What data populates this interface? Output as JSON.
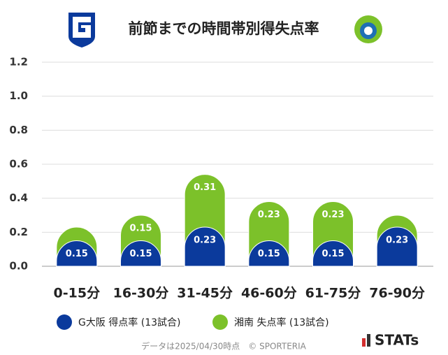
{
  "chart_data": {
    "type": "bar",
    "stacked": true,
    "title": "前節までの時間帯別得失点率",
    "categories": [
      "0-15分",
      "16-30分",
      "31-45分",
      "46-60分",
      "61-75分",
      "76-90分"
    ],
    "series": [
      {
        "name": "G大阪 得点率 (13試合)",
        "color": "#0b3a9c",
        "values": [
          0.15,
          0.15,
          0.23,
          0.15,
          0.15,
          0.23
        ]
      },
      {
        "name": "湘南 失点率 (13試合)",
        "color": "#7cc12a",
        "values": [
          0.08,
          0.15,
          0.31,
          0.23,
          0.23,
          0.07
        ],
        "value_labels": [
          null,
          "0.15",
          "0.31",
          "0.23",
          "0.23",
          null
        ]
      }
    ],
    "ylim": [
      0,
      1.2
    ],
    "yticks": [
      {
        "value": 0,
        "label": "0.0"
      },
      0.2,
      0.4,
      0.6,
      0.8,
      {
        "value": 1,
        "label": "1.0"
      },
      1.2
    ],
    "grid": true
  },
  "footer": "データは2025/04/30時点　© SPORTERIA",
  "brand": "STATs"
}
